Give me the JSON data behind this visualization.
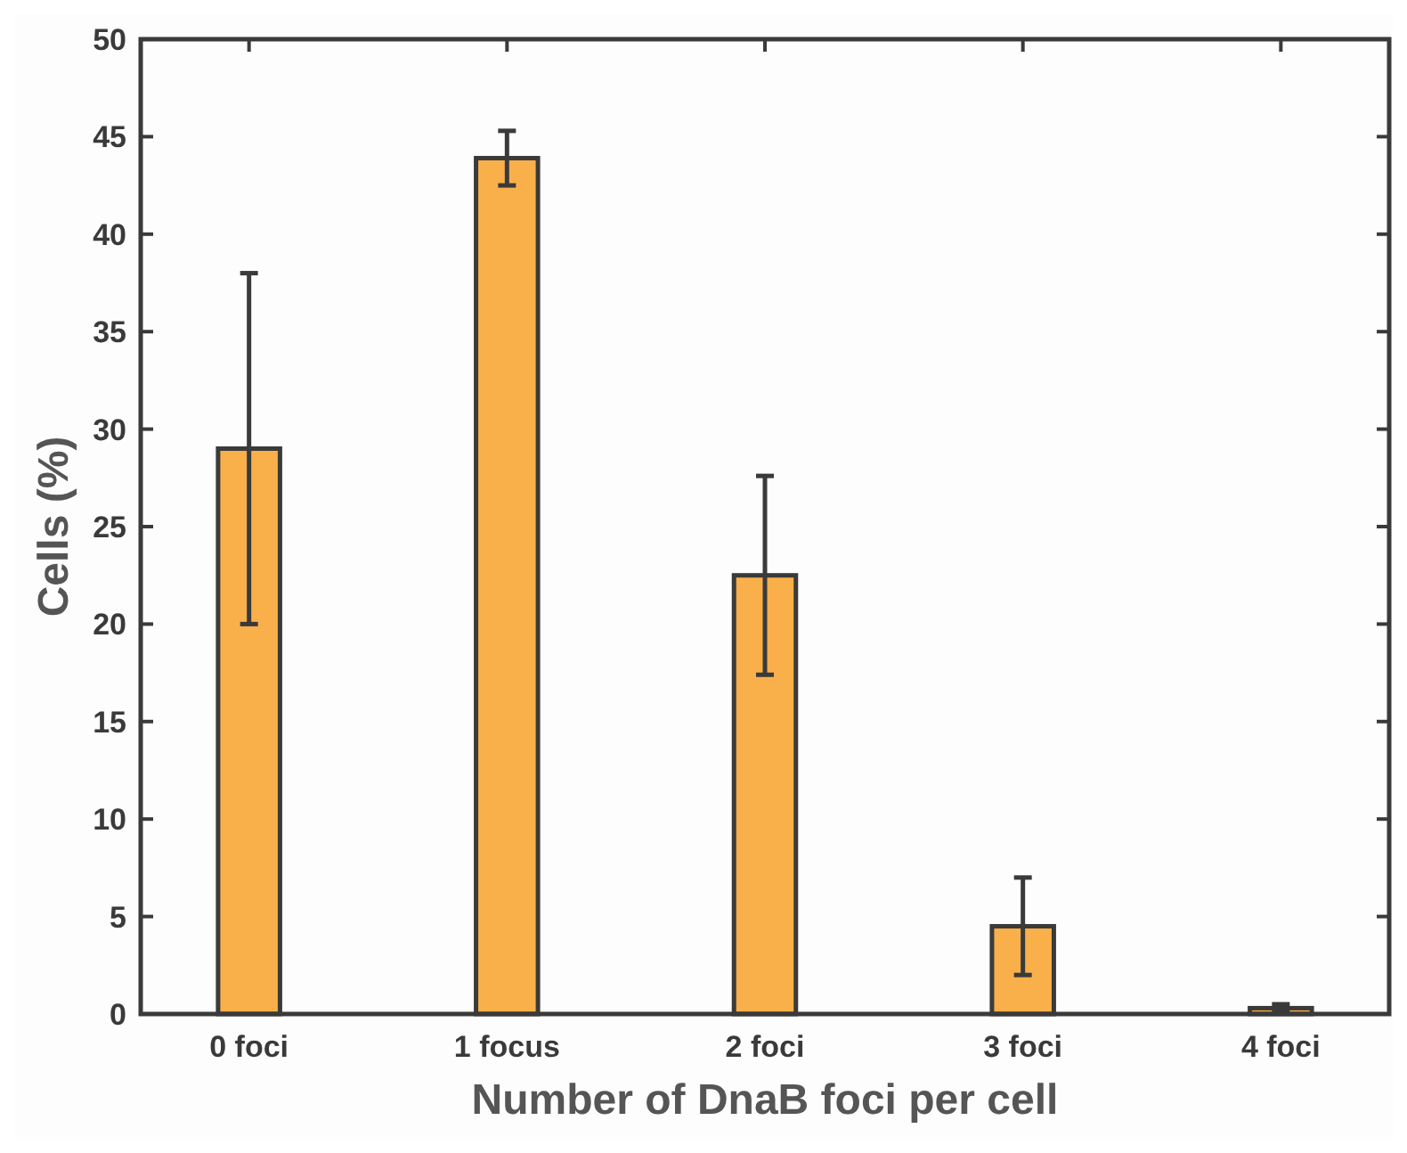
{
  "chart_data": {
    "type": "bar",
    "xlabel": "Number of DnaB foci per cell",
    "ylabel": "Cells (%)",
    "categories": [
      "0 foci",
      "1 focus",
      "2 foci",
      "3 foci",
      "4 foci"
    ],
    "values": [
      29,
      43.9,
      22.5,
      4.5,
      0.3
    ],
    "errors": [
      9,
      1.4,
      5.1,
      2.5,
      0.2
    ],
    "color": "#f9b04a",
    "ylim": [
      0,
      50
    ],
    "yticks": [
      0,
      5,
      10,
      15,
      20,
      25,
      30,
      35,
      40,
      45,
      50
    ],
    "grid": false
  }
}
